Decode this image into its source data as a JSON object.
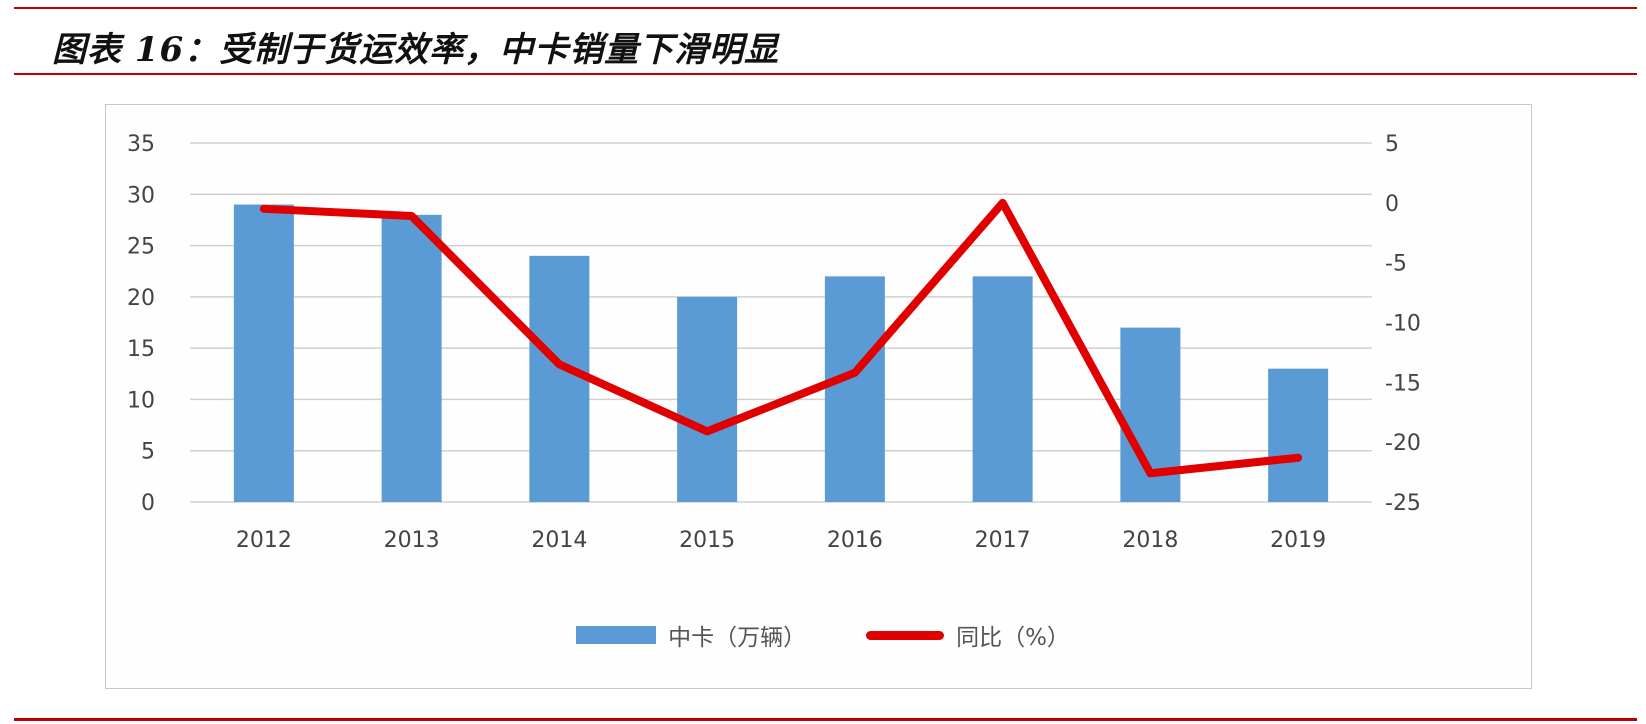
{
  "header": {
    "title": "图表 16：受制于货运效率，中卡销量下滑明显"
  },
  "colors": {
    "accent_rule": "#c00000",
    "bar": "#5b9bd5",
    "line": "#e00000",
    "grid": "#d0d0d0",
    "tick_text": "#444444"
  },
  "legend": {
    "items": [
      {
        "label": "中卡（万辆）",
        "type": "bar"
      },
      {
        "label": "同比（%）",
        "type": "line"
      }
    ]
  },
  "chart_data": {
    "type": "bar",
    "title": "图表 16：受制于货运效率，中卡销量下滑明显",
    "xlabel": "",
    "ylabel": "",
    "categories": [
      "2012",
      "2013",
      "2014",
      "2015",
      "2016",
      "2017",
      "2018",
      "2019"
    ],
    "series": [
      {
        "name": "中卡（万辆）",
        "type": "bar",
        "axis": "left",
        "values": [
          29,
          28,
          24,
          20,
          22,
          22,
          17,
          13
        ]
      },
      {
        "name": "同比（%）",
        "type": "line",
        "axis": "right",
        "values": [
          -0.5,
          -1.1,
          -13.5,
          -19.1,
          -14.2,
          0.0,
          -22.6,
          -21.3
        ]
      }
    ],
    "ylim": [
      0,
      35
    ],
    "y_ticks": [
      "35",
      "30",
      "25",
      "20",
      "15",
      "10",
      "5",
      "0"
    ],
    "y2lim": [
      -25,
      5
    ],
    "y2_ticks": [
      "5",
      "0",
      "-5",
      "-10",
      "-15",
      "-20",
      "-25"
    ],
    "grid": true,
    "legend_position": "bottom"
  }
}
